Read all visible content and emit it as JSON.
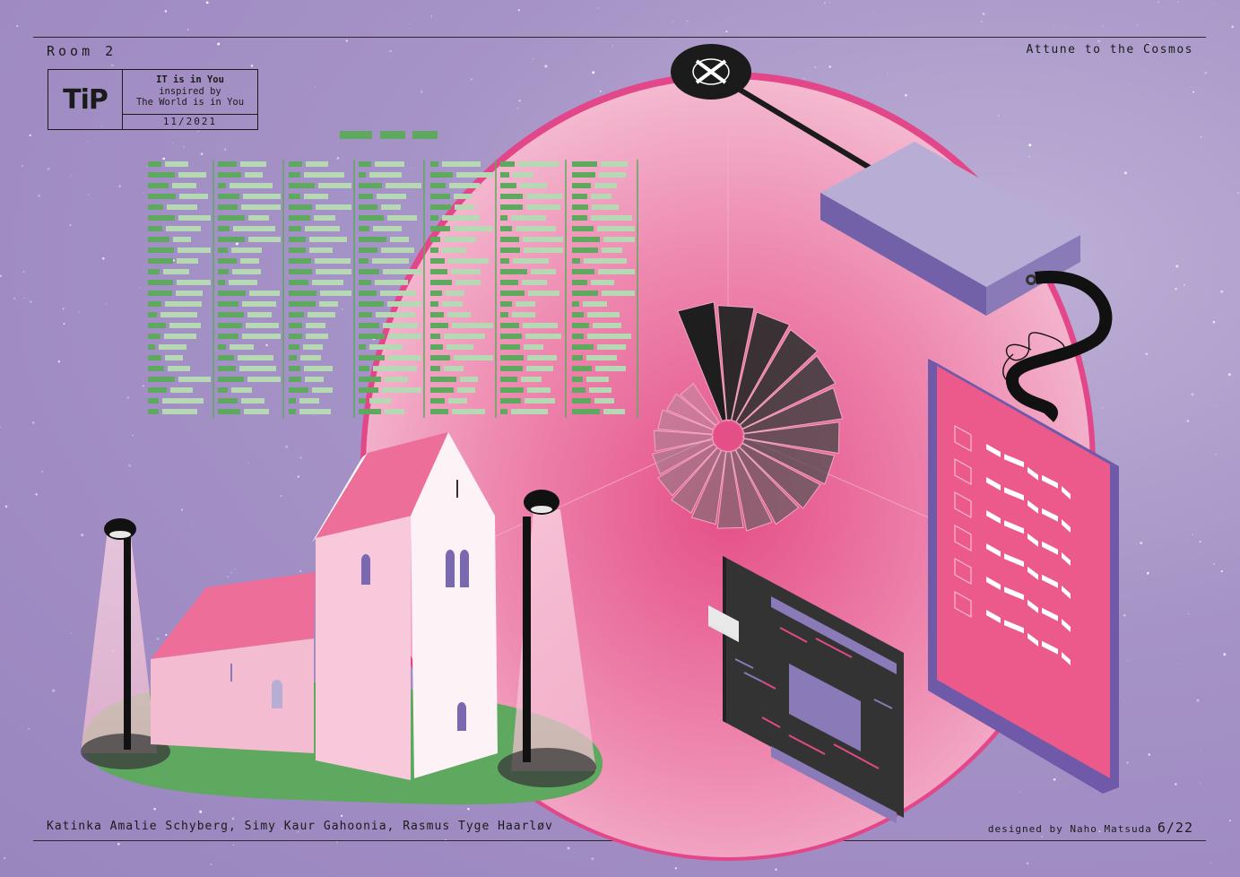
{
  "header": {
    "room": "Room 2",
    "subtitle": "Attune to the Cosmos"
  },
  "tip_box": {
    "logo": "TiP",
    "line1": "IT is in You",
    "line2": "inspired by",
    "line3": "The World is in You",
    "date": "11/2021"
  },
  "footer": {
    "authors": "Katinka Amalie Schyberg, Simy Kaur Gahoonia, Rasmus Tyge Haarløv",
    "designer": "designed by Naho Matsuda",
    "page": "6/22"
  },
  "colors": {
    "background": "#a592c6",
    "pink": "#ec5a8c",
    "light_pink": "#f4b8cf",
    "green": "#5ea860",
    "light_green": "#b6d8b4",
    "purple": "#8a74b6",
    "dark": "#333333"
  }
}
